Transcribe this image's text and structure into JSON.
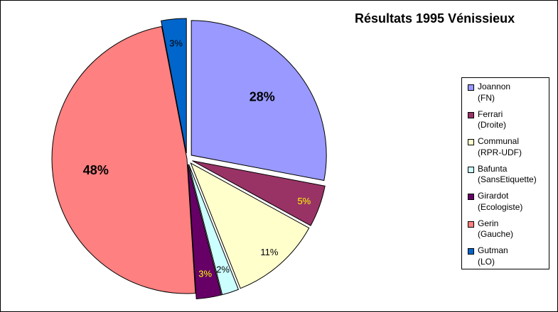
{
  "chart_data": {
    "type": "pie",
    "title": "Résultats 1995 Vénissieux",
    "legend_position": "right",
    "slices": [
      {
        "name": "Joannon",
        "sub": "(FN)",
        "value": 28,
        "label": "28%",
        "color": "#9999FF",
        "label_color": "#000000",
        "label_bold": true,
        "exploded": true
      },
      {
        "name": "Ferrari",
        "sub": "(Droite)",
        "value": 5,
        "label": "5%",
        "color": "#993366",
        "label_color": "#FFFF00",
        "label_bold": false,
        "exploded": true
      },
      {
        "name": "Communal",
        "sub": "(RPR-UDF)",
        "value": 11,
        "label": "11%",
        "color": "#FFFFCC",
        "label_color": "#000000",
        "label_bold": false,
        "exploded": true
      },
      {
        "name": "Bafunta",
        "sub": "(SansEtiquette)",
        "value": 2,
        "label": "2%",
        "color": "#CCFFFF",
        "label_color": "#000000",
        "label_bold": false,
        "exploded": true
      },
      {
        "name": "Girardot",
        "sub": "(Ecologiste)",
        "value": 3,
        "label": "3%",
        "color": "#660066",
        "label_color": "#FFFF00",
        "label_bold": false,
        "exploded": true
      },
      {
        "name": "Gerin",
        "sub": "(Gauche)",
        "value": 48,
        "label": "48%",
        "color": "#FF8080",
        "label_color": "#000000",
        "label_bold": true,
        "exploded": false
      },
      {
        "name": "Gutman",
        "sub": "(LO)",
        "value": 3,
        "label": "3%",
        "color": "#0066CC",
        "label_color": "#000000",
        "label_bold": false,
        "exploded": true
      }
    ]
  }
}
